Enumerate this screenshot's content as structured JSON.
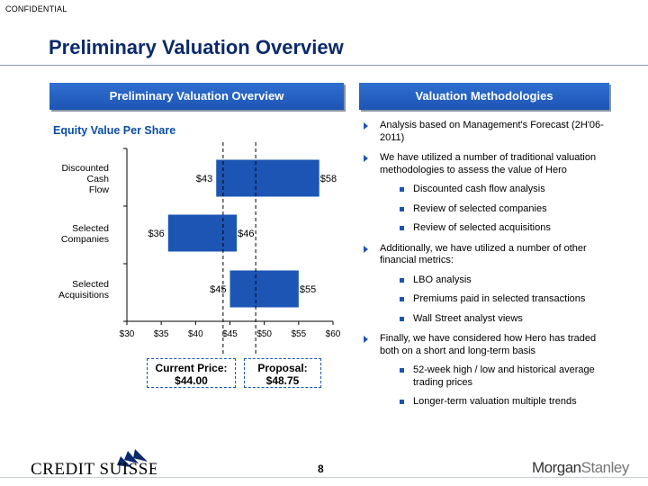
{
  "header": {
    "confidential": "CONFIDENTIAL",
    "title": "Preliminary Valuation Overview"
  },
  "left_panel": {
    "header": "Preliminary Valuation Overview",
    "subtitle": "Equity Value Per Share"
  },
  "right_panel": {
    "header": "Valuation Methodologies",
    "items": [
      {
        "text": "Analysis based on Management's Forecast (2H'06-2011)",
        "sub": []
      },
      {
        "text": "We have utilized a number of traditional valuation methodologies to assess the value of Hero",
        "sub": [
          "Discounted cash flow analysis",
          "Review of selected companies",
          "Review of selected acquisitions"
        ]
      },
      {
        "text": "Additionally, we have utilized a number of other financial metrics:",
        "sub": [
          "LBO analysis",
          "Premiums paid in selected transactions",
          "Wall Street analyst views"
        ]
      },
      {
        "text": "Finally, we have considered how Hero has traded both on a short and long-term basis",
        "sub": [
          "52-week high / low and historical average trading prices",
          "Longer-term valuation multiple trends"
        ]
      }
    ]
  },
  "chart_data": {
    "type": "bar",
    "orientation": "horizontal-range",
    "categories": [
      [
        "Discounted",
        "Cash",
        "Flow"
      ],
      [
        "Selected",
        "Companies"
      ],
      [
        "Selected",
        "Acquisitions"
      ]
    ],
    "ranges": [
      {
        "low": 43,
        "high": 58,
        "low_label": "$43",
        "high_label": "$58"
      },
      {
        "low": 36,
        "high": 46,
        "low_label": "$36",
        "high_label": "$46"
      },
      {
        "low": 45,
        "high": 55,
        "low_label": "$45",
        "high_label": "$55"
      }
    ],
    "xlim": [
      30,
      60
    ],
    "xticks": [
      30,
      35,
      40,
      45,
      50,
      55,
      60
    ],
    "xtick_labels": [
      "$30",
      "$35",
      "$40",
      "$45",
      "$50",
      "$55",
      "$60"
    ],
    "reference_lines": [
      {
        "value": 44.0,
        "label_line1": "Current Price:",
        "label_line2": "$44.00"
      },
      {
        "value": 48.75,
        "label_line1": "Proposal:",
        "label_line2": "$48.75"
      }
    ],
    "bar_color": "#1d55b4",
    "grid": false
  },
  "footer": {
    "page_number": "8",
    "left_logo": "CREDIT SUISSE",
    "right_logo_part1": "Morgan",
    "right_logo_part2": "Stanley"
  }
}
